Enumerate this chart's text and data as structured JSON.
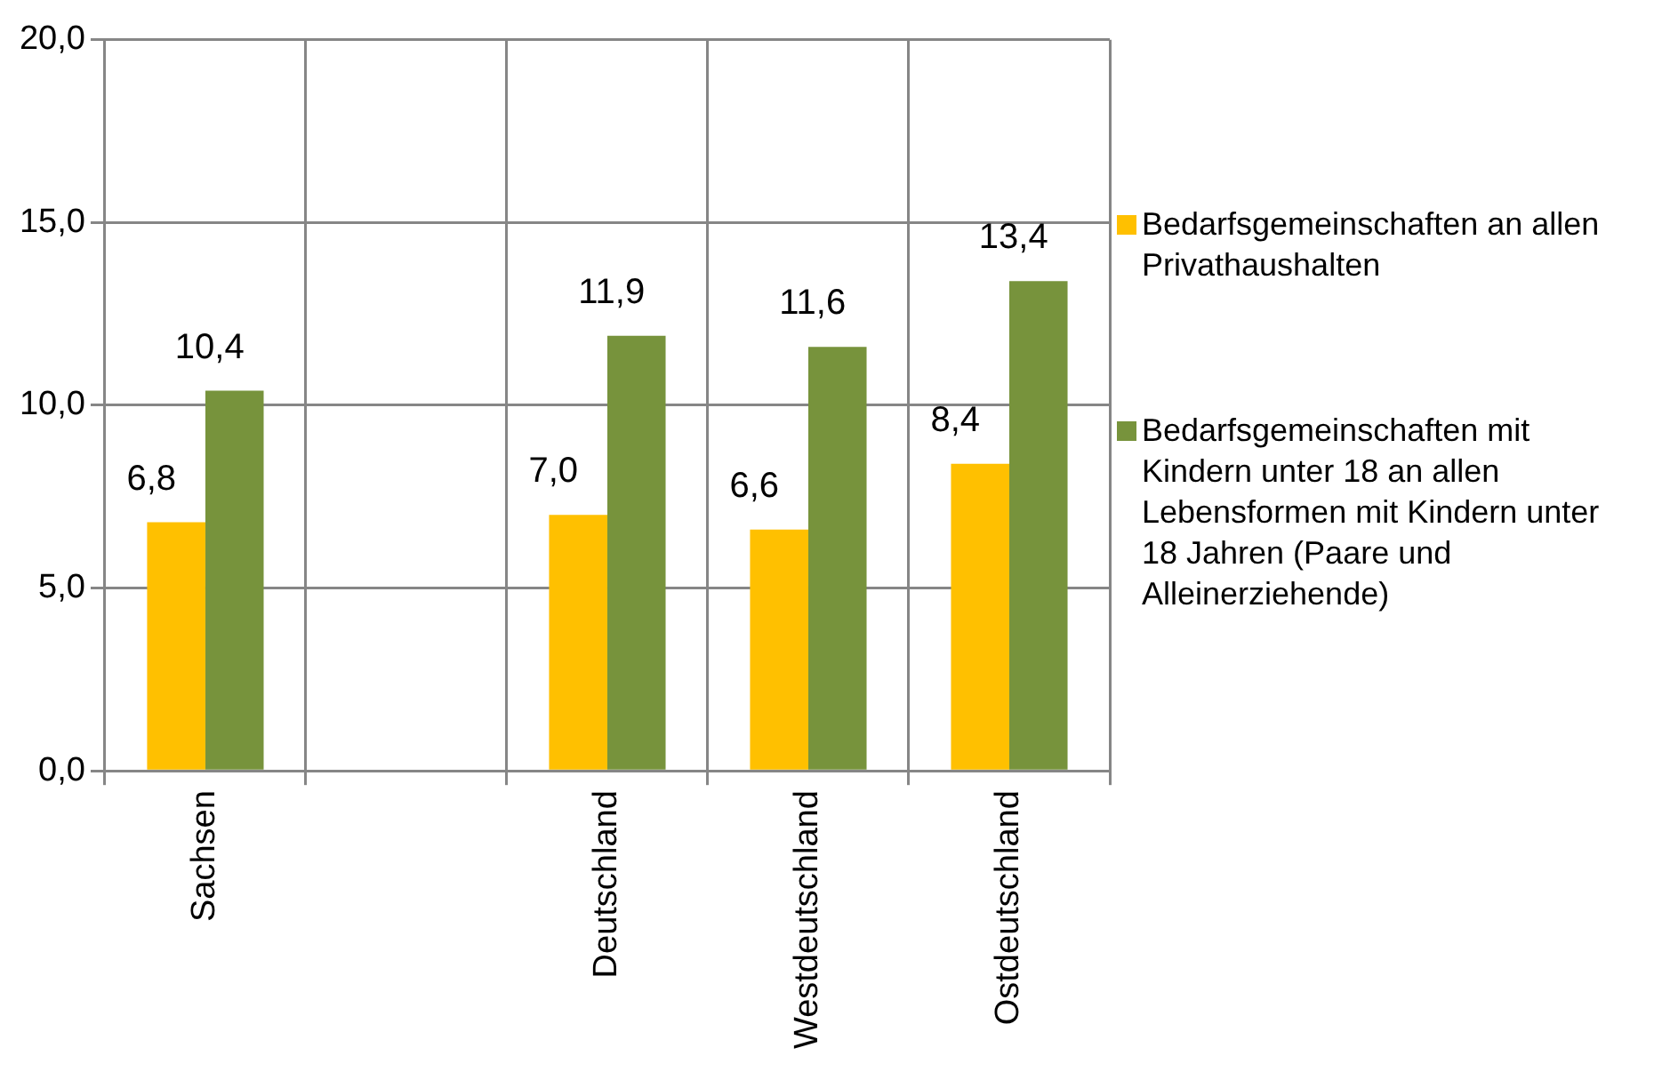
{
  "chart_data": {
    "type": "bar",
    "categories": [
      "Sachsen",
      null,
      "Deutschland",
      "Westdeutschland",
      "Ostdeutschland"
    ],
    "series": [
      {
        "name": "Bedarfsgemeinschaften an allen Privathaushalten",
        "color": "#ffc000",
        "values": [
          6.8,
          null,
          7.0,
          6.6,
          8.4
        ],
        "value_labels": [
          "6,8",
          null,
          "7,0",
          "6,6",
          "8,4"
        ]
      },
      {
        "name": "Bedarfsgemeinschaften mit Kindern unter 18 an allen Lebensformen mit Kindern unter 18 Jahren (Paare und Alleinerziehende)",
        "color": "#77933c",
        "values": [
          10.4,
          null,
          11.9,
          11.6,
          13.4
        ],
        "value_labels": [
          "10,4",
          null,
          "11,9",
          "11,6",
          "13,4"
        ]
      }
    ],
    "ylim": [
      0,
      20
    ],
    "yticks": [
      {
        "value": 0,
        "label": "0,0"
      },
      {
        "value": 5,
        "label": "5,0"
      },
      {
        "value": 10,
        "label": "10,0"
      },
      {
        "value": 15,
        "label": "15,0"
      },
      {
        "value": 20,
        "label": "20,0"
      }
    ],
    "grid": true,
    "legend": "right"
  }
}
